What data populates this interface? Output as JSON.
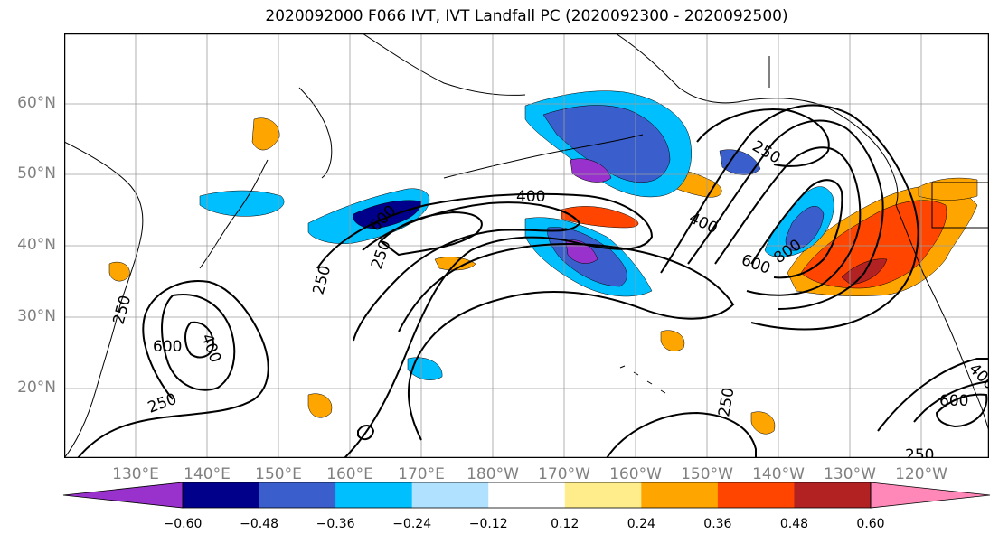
{
  "title": "2020092000 F066 IVT, IVT Landfall PC (2020092300 - 2020092500)",
  "axes": {
    "lat_labels": [
      "60°N",
      "50°N",
      "40°N",
      "30°N",
      "20°N"
    ],
    "lon_labels": [
      "130°E",
      "140°E",
      "150°E",
      "160°E",
      "170°E",
      "180°W",
      "170°W",
      "160°W",
      "150°W",
      "140°W",
      "130°W",
      "120°W"
    ],
    "label_color": "#808080",
    "grid": true
  },
  "contours": {
    "color": "#000000",
    "labels": [
      "250",
      "400",
      "600",
      "250",
      "400",
      "600",
      "250",
      "400",
      "600",
      "800",
      "250",
      "600",
      "400",
      "250",
      "250",
      "250"
    ]
  },
  "colorbar": {
    "colors": [
      "#9932cc",
      "#00008b",
      "#3a5fcd",
      "#00bfff",
      "#b0e2ff",
      "#ffffff",
      "#ffec8b",
      "#ffa500",
      "#ff4500",
      "#b22222",
      "#ff88b8"
    ],
    "tick_labels": [
      "−0.60",
      "−0.48",
      "−0.36",
      "−0.24",
      "−0.12",
      "0.12",
      "0.24",
      "0.36",
      "0.48",
      "0.60"
    ],
    "extend": "both"
  }
}
